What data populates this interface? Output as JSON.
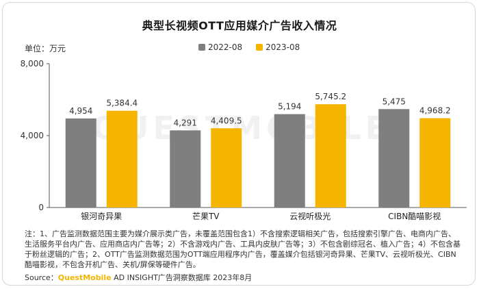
{
  "header": {
    "title": "典型长视频OTT应用媒介广告收入情况",
    "unit_label": "单位：万元"
  },
  "colors": {
    "series_2022": "#7f7f7f",
    "series_2023": "#f5b400"
  },
  "watermark_text": "QUESTMOBILE",
  "chart_data": {
    "type": "bar",
    "title": "典型长视频OTT应用媒介广告收入情况",
    "ylabel": "单位：万元",
    "xlabel": "",
    "categories": [
      "银河奇异果",
      "芒果TV",
      "云视听极光",
      "CIBN酷喵影视"
    ],
    "series": [
      {
        "name": "2022-08",
        "values": [
          4954,
          4291,
          5194,
          5475
        ],
        "labels": [
          "4,954",
          "4,291",
          "5,194",
          "5,475"
        ]
      },
      {
        "name": "2023-08",
        "values": [
          5384.4,
          4409.5,
          5745.2,
          4968.2
        ],
        "labels": [
          "5,384.4",
          "4,409.5",
          "5,745.2",
          "4,968.2"
        ]
      }
    ],
    "ylim": [
      0,
      8000
    ],
    "yticks": [
      0,
      4000,
      8000
    ],
    "ytick_labels": [
      "0",
      "4,000",
      "8,000"
    ],
    "legend_position": "top-center",
    "grid": false
  },
  "footer": {
    "note": "注：1、广告监测数据范围主要为媒介展示类广告，未覆盖范围包含1）不含搜索逻辑相关广告，包括搜索引擎广告、电商内广告、生活服务平台内广告、应用商店内广告等；2）不含游戏内广告、工具内皮肤广告等；3）不包含剧综冠名、植入广告；4）不包含基于粉丝逻辑的广告；2、OTT广告监测数据范围为OTT端应用程序内广告，覆盖媒介包括银河奇异果、芒果TV、云视听极光、CIBN酷喵影视，不包含开机广告、关机/屏保等硬件广告。",
    "source_label": "Source：",
    "source_brand": "QuestMobile",
    "source_rest": " AD INSIGHT广告洞察数据库 2023年8月"
  }
}
